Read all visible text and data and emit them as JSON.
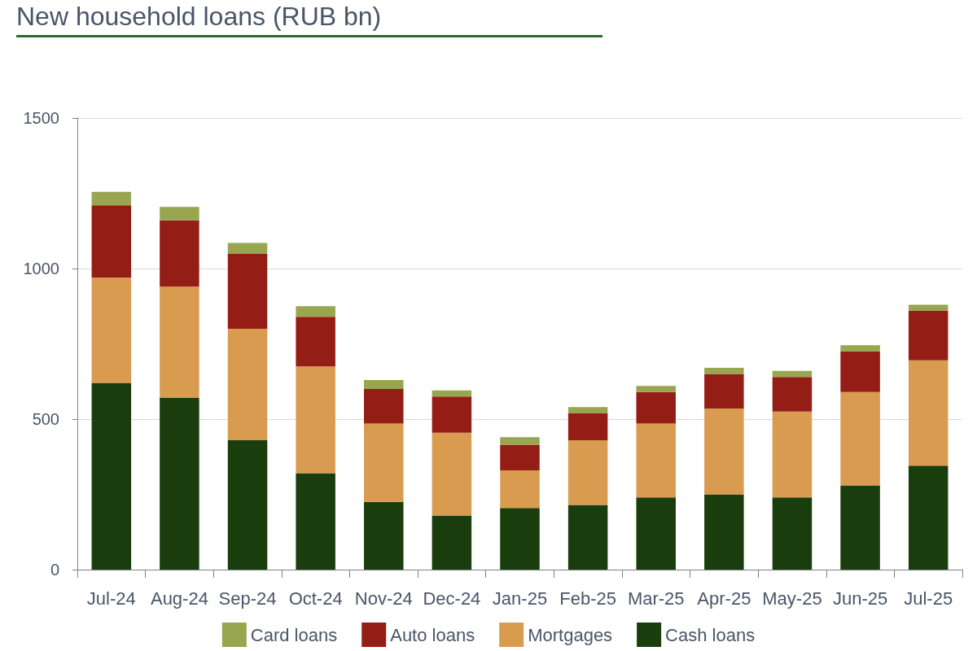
{
  "chart_data": {
    "type": "bar",
    "title": "New household loans (RUB bn)",
    "stacked": true,
    "categories": [
      "Jul-24",
      "Aug-24",
      "Sep-24",
      "Oct-24",
      "Nov-24",
      "Dec-24",
      "Jan-25",
      "Feb-25",
      "Mar-25",
      "Apr-25",
      "May-25",
      "Jun-25",
      "Jul-25"
    ],
    "series": [
      {
        "name": "Cash loans",
        "color": "#1a3d0d",
        "values": [
          620,
          570,
          430,
          320,
          225,
          180,
          205,
          215,
          240,
          250,
          240,
          280,
          345
        ]
      },
      {
        "name": "Mortgages",
        "color": "#d99b50",
        "values": [
          350,
          370,
          370,
          355,
          260,
          275,
          125,
          215,
          245,
          285,
          285,
          310,
          350
        ]
      },
      {
        "name": "Auto loans",
        "color": "#941e15",
        "values": [
          240,
          220,
          250,
          165,
          115,
          120,
          85,
          90,
          105,
          115,
          115,
          135,
          165
        ]
      },
      {
        "name": "Card loans",
        "color": "#97a64f",
        "values": [
          45,
          45,
          35,
          35,
          30,
          20,
          25,
          20,
          20,
          20,
          20,
          20,
          20
        ]
      }
    ],
    "ylim": [
      0,
      1500
    ],
    "yticks": [
      0,
      500,
      1000,
      1500
    ],
    "grid": "y",
    "legend": "bottom"
  }
}
